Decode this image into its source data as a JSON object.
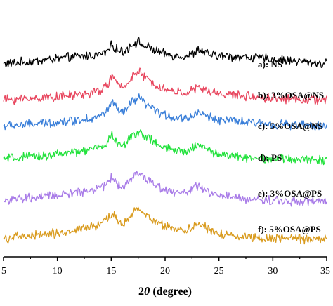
{
  "chart_data": {
    "type": "line",
    "title": "",
    "xlabel_prefix": "2",
    "xlabel_symbol": "θ",
    "xlabel_suffix": " (degree)",
    "xlim": [
      5,
      35
    ],
    "x_ticks": [
      5,
      10,
      15,
      20,
      25,
      30,
      35
    ],
    "x_tick_labels": [
      "5",
      "10",
      "15",
      "20",
      "25",
      "30",
      "35"
    ],
    "ylabel": "",
    "y_axis_visible": false,
    "grid": false,
    "legend_placement": "right, beside each trace",
    "series": [
      {
        "name": "a):  NS",
        "color": "#000000",
        "x": [
          5,
          7,
          9,
          11,
          13,
          14,
          14.6,
          15.1,
          15.6,
          16.2,
          16.7,
          17.2,
          17.6,
          18.0,
          18.5,
          19.2,
          20,
          21,
          22,
          22.6,
          23.1,
          23.6,
          24.2,
          25,
          26.5,
          28,
          30,
          32,
          33.5,
          35
        ],
        "y": [
          0.3,
          0.36,
          0.43,
          0.5,
          0.56,
          0.6,
          0.68,
          0.9,
          0.72,
          0.68,
          0.85,
          0.96,
          0.98,
          0.86,
          0.8,
          0.7,
          0.6,
          0.55,
          0.55,
          0.62,
          0.75,
          0.66,
          0.58,
          0.55,
          0.53,
          0.5,
          0.45,
          0.4,
          0.35,
          0.3
        ]
      },
      {
        "name": "b):  3%OSA@NS",
        "color": "#e8475f",
        "x": [
          5,
          7,
          9,
          11,
          13,
          14,
          14.6,
          15.1,
          15.6,
          16.2,
          16.7,
          17.2,
          17.6,
          18.0,
          18.5,
          19.2,
          20,
          21,
          22,
          22.6,
          23.1,
          23.6,
          24.2,
          25,
          26.5,
          28,
          30,
          32,
          33.5,
          35
        ],
        "y": [
          0.1,
          0.14,
          0.18,
          0.23,
          0.3,
          0.38,
          0.55,
          0.85,
          0.55,
          0.48,
          0.75,
          0.92,
          0.95,
          0.82,
          0.7,
          0.55,
          0.42,
          0.35,
          0.33,
          0.4,
          0.48,
          0.42,
          0.34,
          0.3,
          0.25,
          0.2,
          0.16,
          0.13,
          0.11,
          0.1
        ]
      },
      {
        "name": "c):  5%OSA@NS",
        "color": "#3a7fd9",
        "x": [
          5,
          7,
          9,
          11,
          13,
          14,
          14.6,
          15.1,
          15.6,
          16.2,
          16.7,
          17.2,
          17.6,
          18.0,
          18.5,
          19.2,
          20,
          21,
          22,
          22.6,
          23.1,
          23.6,
          24.2,
          25,
          26.5,
          28,
          30,
          32,
          33.5,
          35
        ],
        "y": [
          0.12,
          0.16,
          0.21,
          0.27,
          0.35,
          0.42,
          0.6,
          0.88,
          0.58,
          0.5,
          0.78,
          0.93,
          0.96,
          0.85,
          0.72,
          0.57,
          0.45,
          0.38,
          0.36,
          0.45,
          0.55,
          0.46,
          0.38,
          0.32,
          0.27,
          0.22,
          0.18,
          0.15,
          0.13,
          0.12
        ]
      },
      {
        "name": "d):  PS",
        "color": "#22e23c",
        "x": [
          5,
          7,
          9,
          11,
          13,
          14,
          14.6,
          15.1,
          15.6,
          16.2,
          16.7,
          17.2,
          17.6,
          18.0,
          18.5,
          19.2,
          20,
          21,
          22,
          22.6,
          23.1,
          23.6,
          24.2,
          25,
          26.5,
          28,
          30,
          32,
          33.5,
          35
        ],
        "y": [
          0.12,
          0.17,
          0.23,
          0.3,
          0.4,
          0.48,
          0.62,
          0.88,
          0.58,
          0.52,
          0.75,
          0.93,
          0.96,
          0.86,
          0.74,
          0.58,
          0.44,
          0.36,
          0.34,
          0.48,
          0.6,
          0.48,
          0.35,
          0.27,
          0.2,
          0.16,
          0.13,
          0.11,
          0.1,
          0.1
        ]
      },
      {
        "name": "e):  3%OSA@PS",
        "color": "#a97ce8",
        "x": [
          5,
          7,
          9,
          11,
          13,
          14,
          14.6,
          15.1,
          15.6,
          16.2,
          16.7,
          17.2,
          17.6,
          18.0,
          18.5,
          19.2,
          20,
          21,
          22,
          22.6,
          23.1,
          23.6,
          24.2,
          25,
          26.5,
          28,
          30,
          32,
          33.5,
          35
        ],
        "y": [
          0.12,
          0.17,
          0.24,
          0.32,
          0.44,
          0.52,
          0.64,
          0.86,
          0.58,
          0.54,
          0.75,
          0.92,
          0.95,
          0.86,
          0.74,
          0.58,
          0.46,
          0.38,
          0.36,
          0.46,
          0.56,
          0.45,
          0.34,
          0.26,
          0.2,
          0.15,
          0.12,
          0.1,
          0.09,
          0.08
        ]
      },
      {
        "name": "f):  5%OSA@PS",
        "color": "#d99b1e",
        "x": [
          5,
          7,
          9,
          11,
          13,
          14,
          14.6,
          15.1,
          15.6,
          16.2,
          16.7,
          17.2,
          17.6,
          18.0,
          18.5,
          19.2,
          20,
          21,
          22,
          22.6,
          23.1,
          23.6,
          24.2,
          25,
          26.5,
          28,
          30,
          32,
          33.5,
          35
        ],
        "y": [
          0.1,
          0.15,
          0.22,
          0.3,
          0.44,
          0.52,
          0.66,
          0.88,
          0.6,
          0.56,
          0.78,
          0.92,
          0.96,
          0.88,
          0.76,
          0.6,
          0.48,
          0.4,
          0.36,
          0.46,
          0.56,
          0.44,
          0.32,
          0.24,
          0.18,
          0.14,
          0.11,
          0.09,
          0.08,
          0.07
        ]
      }
    ]
  }
}
